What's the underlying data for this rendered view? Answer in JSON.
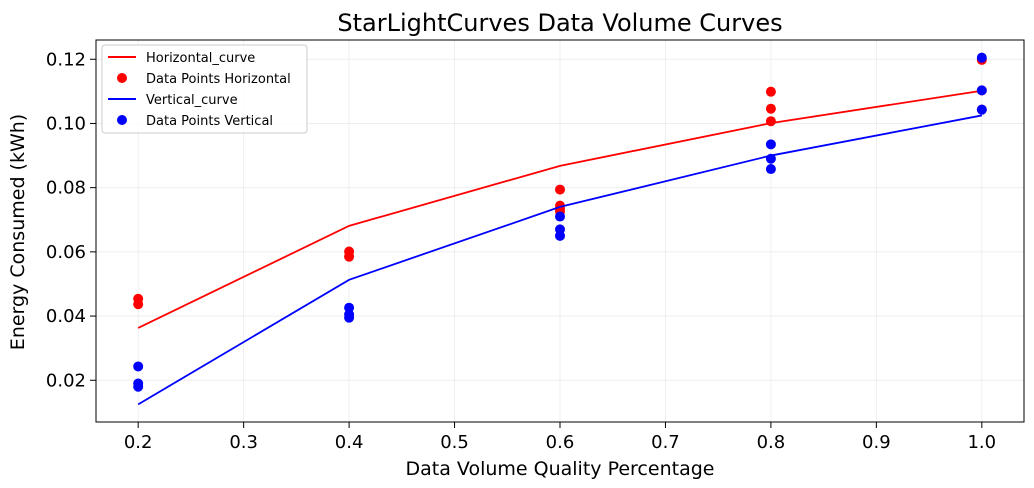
{
  "chart_data": {
    "type": "scatter",
    "title": "StarLightCurves Data Volume Curves",
    "xlabel": "Data Volume Quality Percentage",
    "ylabel": "Energy Consumed (kWh)",
    "xlim": [
      0.16,
      1.04
    ],
    "ylim": [
      0.007,
      0.126
    ],
    "xticks": [
      "0.2",
      "0.3",
      "0.4",
      "0.5",
      "0.6",
      "0.7",
      "0.8",
      "0.9",
      "1.0"
    ],
    "yticks": [
      "0.02",
      "0.04",
      "0.06",
      "0.08",
      "0.10",
      "0.12"
    ],
    "grid": true,
    "legend_position": "top-left",
    "series": [
      {
        "name": "Horizontal_curve",
        "kind": "line",
        "color": "#ff0000",
        "x": [
          0.2,
          0.4,
          0.6,
          0.8,
          1.0
        ],
        "y": [
          0.0363,
          0.0681,
          0.0868,
          0.1001,
          0.1102
        ]
      },
      {
        "name": "Data Points Horizontal",
        "kind": "scatter",
        "color": "#ff0000",
        "x": [
          0.2,
          0.2,
          0.4,
          0.4,
          0.6,
          0.6,
          0.6,
          0.6,
          0.8,
          0.8,
          0.8,
          1.0,
          1.0,
          1.0
        ],
        "y": [
          0.0454,
          0.0437,
          0.0601,
          0.0585,
          0.0794,
          0.0744,
          0.0735,
          0.0726,
          0.1099,
          0.1046,
          0.1007,
          0.1198,
          0.1103,
          0.1043
        ]
      },
      {
        "name": "Vertical_curve",
        "kind": "line",
        "color": "#0000ff",
        "x": [
          0.2,
          0.4,
          0.6,
          0.8,
          1.0
        ],
        "y": [
          0.0125,
          0.0513,
          0.074,
          0.09,
          0.1025
        ]
      },
      {
        "name": "Data Points Vertical",
        "kind": "scatter",
        "color": "#0000ff",
        "x": [
          0.2,
          0.2,
          0.2,
          0.4,
          0.4,
          0.4,
          0.6,
          0.6,
          0.6,
          0.8,
          0.8,
          0.8,
          1.0,
          1.0,
          1.0
        ],
        "y": [
          0.0243,
          0.019,
          0.018,
          0.0426,
          0.0405,
          0.0395,
          0.071,
          0.067,
          0.065,
          0.0935,
          0.089,
          0.0858,
          0.1205,
          0.1103,
          0.1043
        ]
      }
    ]
  }
}
